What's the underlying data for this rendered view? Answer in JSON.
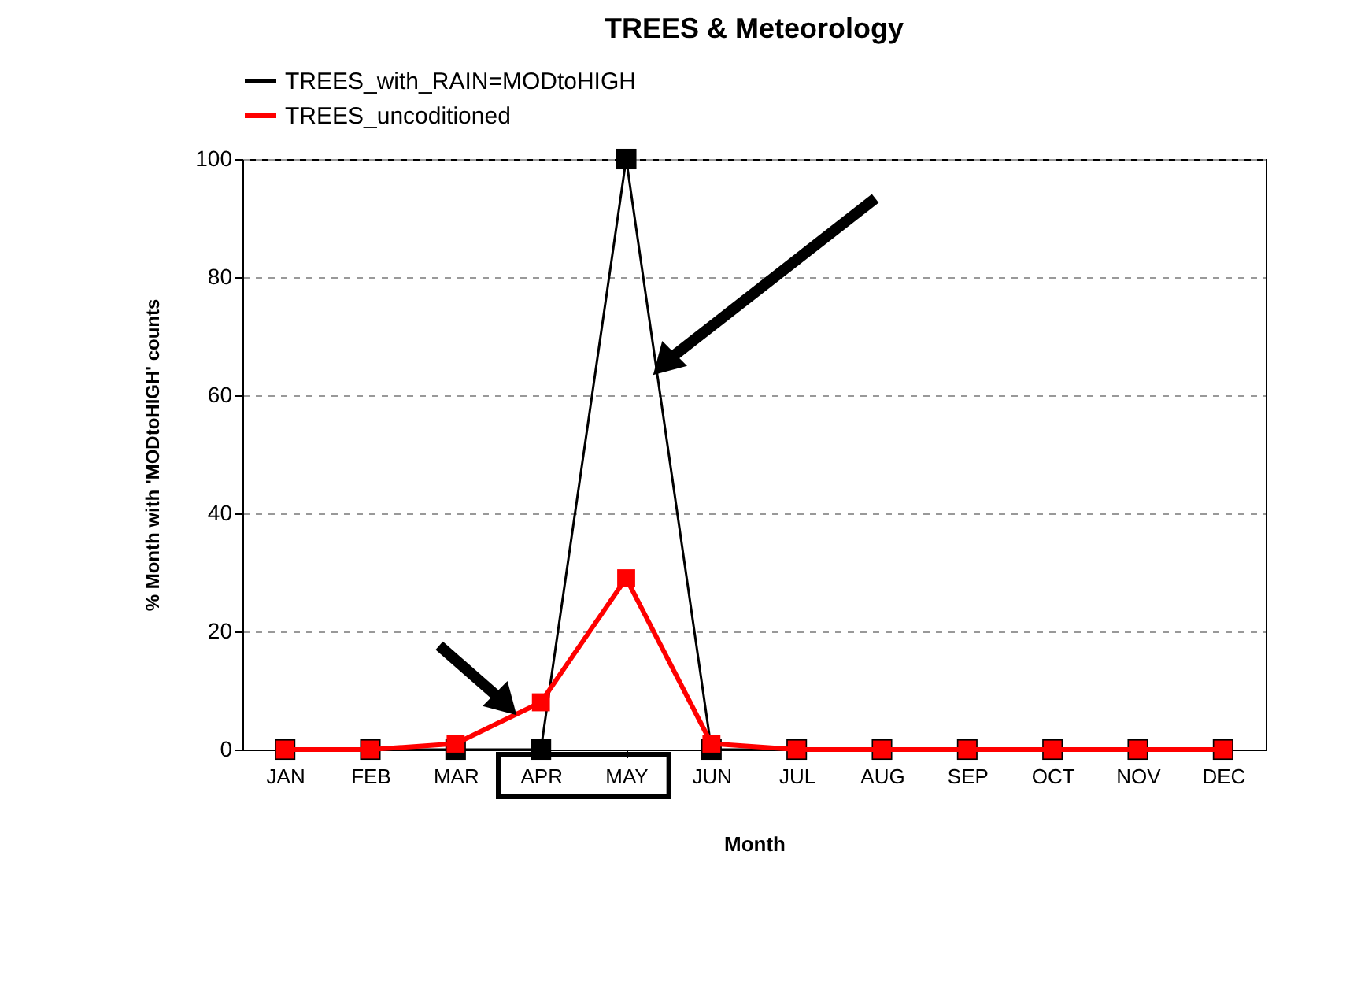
{
  "chart_data": {
    "type": "line",
    "title": "TREES & Meteorology",
    "xlabel": "Month",
    "ylabel": "% Month with 'MODtoHIGH' counts",
    "categories": [
      "JAN",
      "FEB",
      "MAR",
      "APR",
      "MAY",
      "JUN",
      "JUL",
      "AUG",
      "SEP",
      "OCT",
      "NOV",
      "DEC"
    ],
    "series": [
      {
        "name": "TREES_with_RAIN=MODtoHIGH",
        "color": "#000000",
        "values": [
          0,
          0,
          0,
          0,
          100,
          0,
          0,
          0,
          0,
          0,
          0,
          0
        ]
      },
      {
        "name": "TREES_uncoditioned",
        "color": "#ff0000",
        "values": [
          0,
          0,
          1,
          8,
          29,
          1,
          0,
          0,
          0,
          0,
          0,
          0
        ]
      }
    ],
    "ylim": [
      0,
      100
    ],
    "yticks": [
      0,
      20,
      40,
      60,
      80,
      100
    ],
    "grid": "y",
    "legend": "top",
    "marker": "square",
    "line_style": "solid"
  }
}
